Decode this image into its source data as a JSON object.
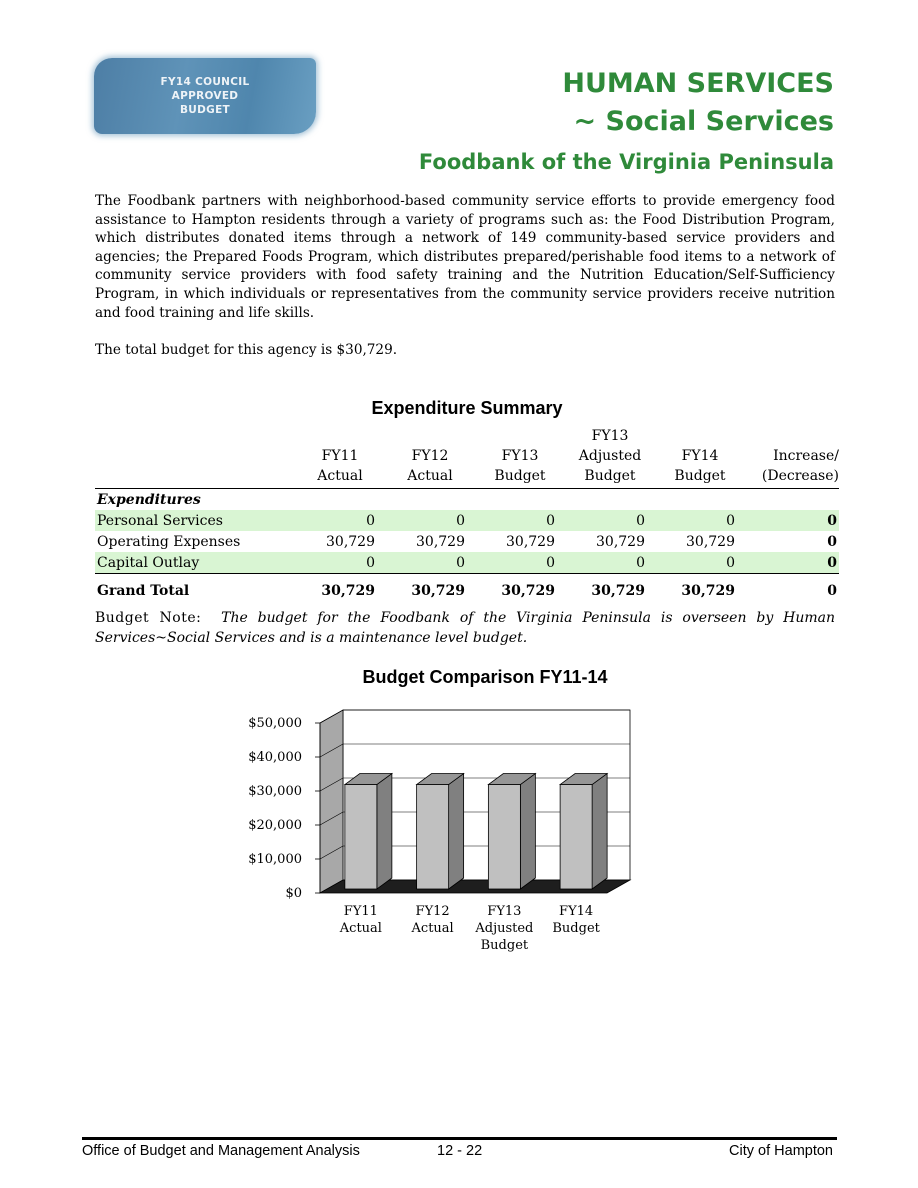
{
  "badge": {
    "lines": [
      "FY14 COUNCIL",
      "APPROVED",
      "BUDGET"
    ]
  },
  "header": {
    "title1": "HUMAN SERVICES",
    "title2": "~ Social Services",
    "title3": "Foodbank of the Virginia Peninsula"
  },
  "intro": "The Foodbank partners with neighborhood-based community service efforts to provide emergency food assistance to Hampton residents through a variety of programs such as:  the Food Distribution Program, which distributes donated items through a network of 149 community-based service providers and agencies; the Prepared Foods Program, which distributes prepared/perishable food items to a network of community service providers with food safety training and the Nutrition Education/Self-Sufficiency Program, in which individuals or representatives from the community service providers receive nutrition and food training and life skills.",
  "total_budget": "The total budget for this agency is $30,729.",
  "expenditure_summary": {
    "title": "Expenditure Summary",
    "columns": [
      {
        "l1": "",
        "l2": "FY11",
        "l3": "Actual"
      },
      {
        "l1": "",
        "l2": "FY12",
        "l3": "Actual"
      },
      {
        "l1": "",
        "l2": "FY13",
        "l3": "Budget"
      },
      {
        "l1": "FY13",
        "l2": "Adjusted",
        "l3": "Budget"
      },
      {
        "l1": "",
        "l2": "FY14",
        "l3": "Budget"
      },
      {
        "l1": "",
        "l2": "Increase/",
        "l3": "(Decrease)"
      }
    ],
    "section_label": "Expenditures",
    "rows": [
      {
        "label": "Personal Services",
        "values": [
          "0",
          "0",
          "0",
          "0",
          "0",
          "0"
        ]
      },
      {
        "label": "Operating Expenses",
        "values": [
          "30,729",
          "30,729",
          "30,729",
          "30,729",
          "30,729",
          "0"
        ]
      },
      {
        "label": "Capital Outlay",
        "values": [
          "0",
          "0",
          "0",
          "0",
          "0",
          "0"
        ]
      }
    ],
    "grand_total": {
      "label": "Grand Total",
      "values": [
        "30,729",
        "30,729",
        "30,729",
        "30,729",
        "30,729",
        "0"
      ]
    }
  },
  "budget_note": {
    "label": "Budget Note:",
    "text": "The budget for the Foodbank of the Virginia Peninsula is overseen by Human Services~Social Services and is a maintenance level budget."
  },
  "chart_data": {
    "type": "bar",
    "title": "Budget Comparison FY11-14",
    "categories": [
      [
        "FY11",
        "Actual"
      ],
      [
        "FY12",
        "Actual"
      ],
      [
        "FY13",
        "Adjusted",
        "Budget"
      ],
      [
        "FY14",
        "Budget"
      ]
    ],
    "values": [
      30729,
      30729,
      30729,
      30729
    ],
    "ylim": [
      0,
      50000
    ],
    "yticks": [
      0,
      10000,
      20000,
      30000,
      40000,
      50000
    ],
    "ytick_labels": [
      "$0",
      "$10,000",
      "$20,000",
      "$30,000",
      "$40,000",
      "$50,000"
    ],
    "grid": true,
    "style": "3d",
    "colors": {
      "bar_front": "#c0c0c0",
      "bar_side": "#808080",
      "bar_top": "#969696",
      "wall": "#a8a8a8",
      "floor": "#1e1e1e"
    }
  },
  "footer": {
    "left": "Office of Budget and Management Analysis",
    "page": "12 - 22",
    "right": "City of Hampton"
  }
}
